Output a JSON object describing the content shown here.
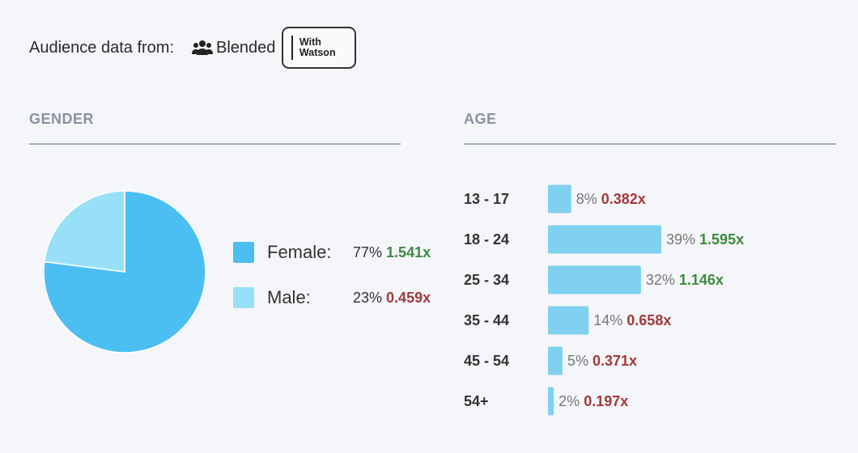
{
  "header": {
    "label": "Audience data from:",
    "source_icon": "people-group-icon",
    "source_name": "Blended",
    "badge_line1": "With",
    "badge_line2": "Watson"
  },
  "sections": {
    "gender_title": "GENDER",
    "age_title": "AGE"
  },
  "colors": {
    "female": "#4bbff2",
    "male": "#98e0f7",
    "age_bar": "#80d0f0",
    "positive": "#3f8a3f",
    "negative": "#a3393b",
    "rule": "#a9b0bc"
  },
  "chart_data": [
    {
      "type": "pie",
      "title": "GENDER",
      "slices": [
        {
          "label": "Female:",
          "value": 77,
          "percent": "77%",
          "index": "1.541x",
          "index_direction": "positive"
        },
        {
          "label": "Male:",
          "value": 23,
          "percent": "23%",
          "index": "0.459x",
          "index_direction": "negative"
        }
      ],
      "legend_position": "right"
    },
    {
      "type": "bar",
      "orientation": "horizontal",
      "title": "AGE",
      "categories": [
        "13 - 17",
        "18 - 24",
        "25 - 34",
        "35 - 44",
        "45 - 54",
        "54+"
      ],
      "values": [
        8,
        39,
        32,
        14,
        5,
        2
      ],
      "percent_labels": [
        "8%",
        "39%",
        "32%",
        "14%",
        "5%",
        "2%"
      ],
      "index_labels": [
        "0.382x",
        "1.595x",
        "1.146x",
        "0.658x",
        "0.371x",
        "0.197x"
      ],
      "index_direction": [
        "negative",
        "positive",
        "positive",
        "negative",
        "negative",
        "negative"
      ],
      "grid": false
    }
  ]
}
